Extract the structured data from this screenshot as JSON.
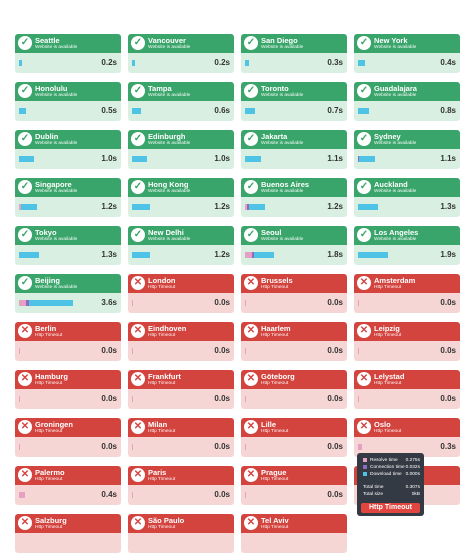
{
  "colors": {
    "ok": "#3aa56a",
    "ok_light": "#d8efe1",
    "err": "#d4443f",
    "err_light": "#f6d6d5",
    "resolve": "#e6a0c4",
    "connection": "#8e6bbf",
    "download": "#4fc3e6"
  },
  "locations": [
    {
      "city": "Seattle",
      "status": "ok",
      "message": "Website is available",
      "time": "0.2s",
      "bar": [
        0,
        0,
        0.04
      ]
    },
    {
      "city": "Vancouver",
      "status": "ok",
      "message": "Website is available",
      "time": "0.2s",
      "bar": [
        0,
        0,
        0.04
      ]
    },
    {
      "city": "San Diego",
      "status": "ok",
      "message": "Website is available",
      "time": "0.3s",
      "bar": [
        0,
        0,
        0.05
      ]
    },
    {
      "city": "New York",
      "status": "ok",
      "message": "Website is available",
      "time": "0.4s",
      "bar": [
        0,
        0,
        0.08
      ]
    },
    {
      "city": "Honolulu",
      "status": "ok",
      "message": "Website is available",
      "time": "0.5s",
      "bar": [
        0,
        0,
        0.09
      ]
    },
    {
      "city": "Tampa",
      "status": "ok",
      "message": "Website is available",
      "time": "0.6s",
      "bar": [
        0,
        0,
        0.11
      ]
    },
    {
      "city": "Toronto",
      "status": "ok",
      "message": "Website is available",
      "time": "0.7s",
      "bar": [
        0,
        0,
        0.12
      ]
    },
    {
      "city": "Guadalajara",
      "status": "ok",
      "message": "Website is available",
      "time": "0.8s",
      "bar": [
        0,
        0,
        0.14
      ]
    },
    {
      "city": "Dublin",
      "status": "ok",
      "message": "Website is available",
      "time": "1.0s",
      "bar": [
        0,
        0,
        0.18
      ]
    },
    {
      "city": "Edinburgh",
      "status": "ok",
      "message": "Website is available",
      "time": "1.0s",
      "bar": [
        0,
        0,
        0.18
      ]
    },
    {
      "city": "Jakarta",
      "status": "ok",
      "message": "Website is available",
      "time": "1.1s",
      "bar": [
        0,
        0,
        0.2
      ]
    },
    {
      "city": "Sydney",
      "status": "ok",
      "message": "Website is available",
      "time": "1.1s",
      "bar": [
        0,
        0.01,
        0.19
      ]
    },
    {
      "city": "Singapore",
      "status": "ok",
      "message": "Website is available",
      "time": "1.2s",
      "bar": [
        0.02,
        0,
        0.2
      ]
    },
    {
      "city": "Hong Kong",
      "status": "ok",
      "message": "Website is available",
      "time": "1.2s",
      "bar": [
        0,
        0,
        0.22
      ]
    },
    {
      "city": "Buenos Aires",
      "status": "ok",
      "message": "Website is available",
      "time": "1.2s",
      "bar": [
        0.02,
        0.02,
        0.19
      ]
    },
    {
      "city": "Auckland",
      "status": "ok",
      "message": "Website is available",
      "time": "1.3s",
      "bar": [
        0,
        0,
        0.24
      ]
    },
    {
      "city": "Tokyo",
      "status": "ok",
      "message": "Website is available",
      "time": "1.3s",
      "bar": [
        0,
        0,
        0.24
      ]
    },
    {
      "city": "New Delhi",
      "status": "ok",
      "message": "Website is available",
      "time": "1.2s",
      "bar": [
        0,
        0,
        0.22
      ]
    },
    {
      "city": "Seoul",
      "status": "ok",
      "message": "Website is available",
      "time": "1.8s",
      "bar": [
        0.08,
        0.02,
        0.24
      ]
    },
    {
      "city": "Los Angeles",
      "status": "ok",
      "message": "Website is available",
      "time": "1.9s",
      "bar": [
        0,
        0,
        0.36
      ]
    },
    {
      "city": "Beijing",
      "status": "ok",
      "message": "Website is available",
      "time": "3.6s",
      "bar": [
        0.08,
        0.04,
        0.54
      ]
    },
    {
      "city": "London",
      "status": "err",
      "message": "Http Timeout",
      "time": "0.0s",
      "bar": [
        0.01,
        0,
        0
      ]
    },
    {
      "city": "Brussels",
      "status": "err",
      "message": "Http Timeout",
      "time": "0.0s",
      "bar": [
        0.01,
        0,
        0
      ]
    },
    {
      "city": "Amsterdam",
      "status": "err",
      "message": "Http Timeout",
      "time": "0.0s",
      "bar": [
        0.01,
        0,
        0
      ]
    },
    {
      "city": "Berlin",
      "status": "err",
      "message": "Http Timeout",
      "time": "0.0s",
      "bar": [
        0.01,
        0,
        0
      ]
    },
    {
      "city": "Eindhoven",
      "status": "err",
      "message": "Http Timeout",
      "time": "0.0s",
      "bar": [
        0.01,
        0,
        0
      ]
    },
    {
      "city": "Haarlem",
      "status": "err",
      "message": "Http Timeout",
      "time": "0.0s",
      "bar": [
        0.01,
        0,
        0
      ]
    },
    {
      "city": "Leipzig",
      "status": "err",
      "message": "Http Timeout",
      "time": "0.0s",
      "bar": [
        0.01,
        0,
        0
      ]
    },
    {
      "city": "Hamburg",
      "status": "err",
      "message": "Http Timeout",
      "time": "0.0s",
      "bar": [
        0.01,
        0,
        0
      ]
    },
    {
      "city": "Frankfurt",
      "status": "err",
      "message": "Http Timeout",
      "time": "0.0s",
      "bar": [
        0.01,
        0,
        0
      ]
    },
    {
      "city": "Göteborg",
      "status": "err",
      "message": "Http Timeout",
      "time": "0.0s",
      "bar": [
        0.01,
        0,
        0
      ]
    },
    {
      "city": "Lelystad",
      "status": "err",
      "message": "Http Timeout",
      "time": "0.0s",
      "bar": [
        0.01,
        0,
        0
      ]
    },
    {
      "city": "Groningen",
      "status": "err",
      "message": "Http Timeout",
      "time": "0.0s",
      "bar": [
        0.01,
        0,
        0
      ]
    },
    {
      "city": "Milan",
      "status": "err",
      "message": "Http Timeout",
      "time": "0.0s",
      "bar": [
        0.01,
        0,
        0
      ]
    },
    {
      "city": "Lille",
      "status": "err",
      "message": "Http Timeout",
      "time": "0.0s",
      "bar": [
        0.01,
        0,
        0
      ]
    },
    {
      "city": "Oslo",
      "status": "err",
      "message": "Http Timeout",
      "time": "0.3s",
      "bar": [
        0.05,
        0,
        0
      ]
    },
    {
      "city": "Palermo",
      "status": "err",
      "message": "Http Timeout",
      "time": "0.4s",
      "bar": [
        0.07,
        0,
        0
      ]
    },
    {
      "city": "Paris",
      "status": "err",
      "message": "Http Timeout",
      "time": "0.0s",
      "bar": [
        0.01,
        0,
        0
      ]
    },
    {
      "city": "Prague",
      "status": "err",
      "message": "Http Timeout",
      "time": "0.0s",
      "bar": [
        0.01,
        0,
        0
      ]
    },
    {
      "city": "",
      "status": "err",
      "message": "",
      "time": "",
      "bar": [
        0,
        0,
        0
      ]
    },
    {
      "city": "Salzburg",
      "status": "err",
      "message": "Http Timeout",
      "time": "",
      "bar": [
        0,
        0,
        0
      ]
    },
    {
      "city": "São Paulo",
      "status": "err",
      "message": "Http Timeout",
      "time": "",
      "bar": [
        0,
        0,
        0
      ]
    },
    {
      "city": "Tel Aviv",
      "status": "err",
      "message": "Http Timeout",
      "time": "",
      "bar": [
        0,
        0,
        0
      ]
    },
    {
      "city": "",
      "status": "none",
      "message": "",
      "time": "",
      "bar": [
        0,
        0,
        0
      ]
    }
  ],
  "tooltip": {
    "rows": [
      {
        "label": "Resolve time",
        "value": "0.275s",
        "color": "#e6a0c4"
      },
      {
        "label": "Connection time",
        "value": "0.032s",
        "color": "#8e6bbf"
      },
      {
        "label": "Download time",
        "value": "0.000s",
        "color": "#4fc3e6"
      }
    ],
    "total_time_label": "Total time",
    "total_time": "0.307s",
    "total_size_label": "Total size",
    "total_size": "0kB",
    "badge": "Http Timeout"
  }
}
